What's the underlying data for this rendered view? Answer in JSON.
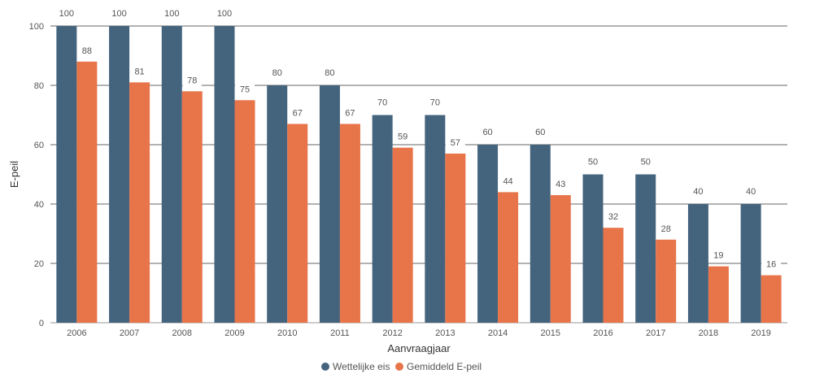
{
  "chart_data": {
    "type": "bar",
    "xlabel": "Aanvraagjaar",
    "ylabel": "E-peil",
    "ylim": [
      0,
      100
    ],
    "yticks": [
      0,
      20,
      40,
      60,
      80,
      100
    ],
    "grid": true,
    "legend_position": "bottom-center",
    "categories": [
      "2006",
      "2007",
      "2008",
      "2009",
      "2010",
      "2011",
      "2012",
      "2013",
      "2014",
      "2015",
      "2016",
      "2017",
      "2018",
      "2019"
    ],
    "series": [
      {
        "name": "Wettelijke eis",
        "color": "#44647e",
        "values": [
          100,
          100,
          100,
          100,
          80,
          80,
          70,
          70,
          60,
          60,
          50,
          50,
          40,
          40
        ]
      },
      {
        "name": "Gemiddeld E-peil",
        "color": "#e8744a",
        "values": [
          88,
          81,
          78,
          75,
          67,
          67,
          59,
          57,
          44,
          43,
          32,
          28,
          19,
          16
        ]
      }
    ]
  }
}
